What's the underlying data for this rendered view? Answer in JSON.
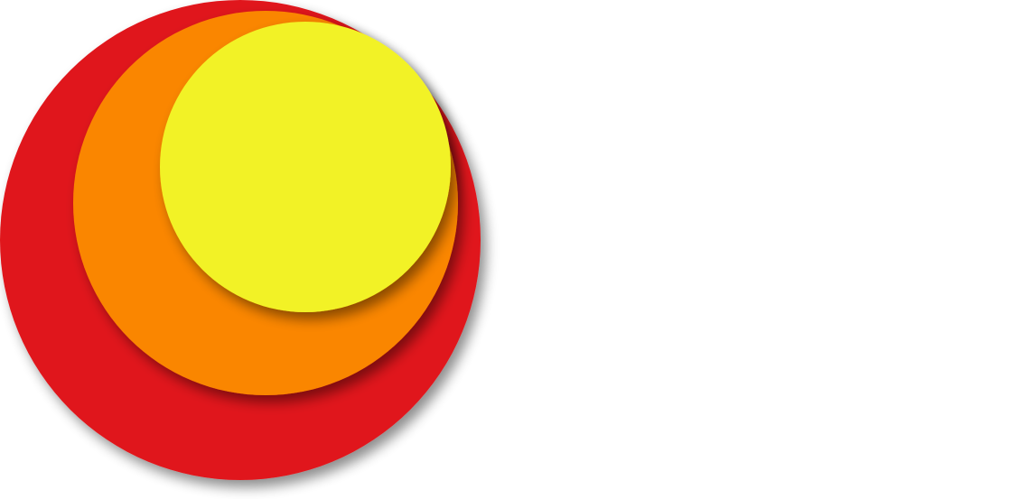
{
  "diagram": {
    "layers": [
      {
        "id": "outer",
        "color": "#e0161b"
      },
      {
        "id": "middle",
        "color": "#fa8606"
      },
      {
        "id": "inner",
        "color": "#f2f226"
      }
    ],
    "background": "#ffffff"
  }
}
